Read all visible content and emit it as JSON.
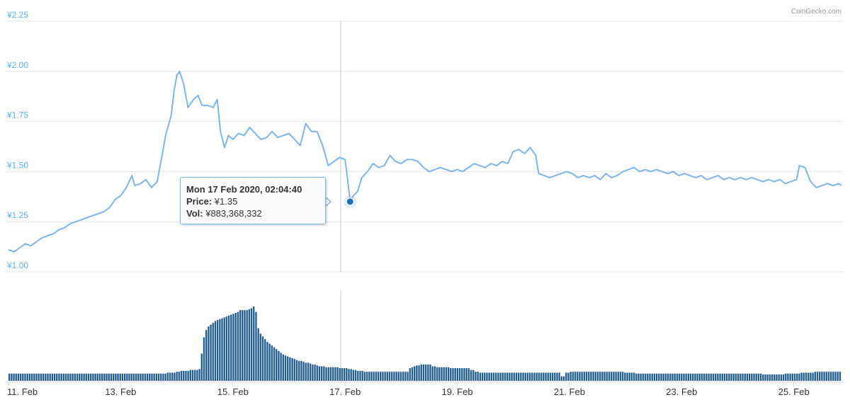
{
  "credit": "CoinGecko.com",
  "colors": {
    "price_line": "#7cb5ec",
    "volume_bar": "#1f5b8e",
    "y_axis_text": "#59b3e6",
    "marker": "#1f6fb2"
  },
  "tooltip": {
    "date": "Mon 17 Feb 2020, 02:04:40",
    "price_label": "Price:",
    "price_value": "¥1.35",
    "vol_label": "Vol:",
    "vol_value": "¥883,368,332"
  },
  "chart_data": [
    {
      "type": "line",
      "name": "price",
      "y_tick_labels": [
        "¥1.00",
        "¥1.25",
        "¥1.50",
        "¥1.75",
        "¥2.00",
        "¥2.25"
      ],
      "y_ticks": [
        1.0,
        1.25,
        1.5,
        1.75,
        2.0,
        2.25
      ],
      "ylim": [
        1.0,
        2.25
      ],
      "x_tick_labels": [
        "11. Feb",
        "13. Feb",
        "15. Feb",
        "17. Feb",
        "19. Feb",
        "21. Feb",
        "23. Feb",
        "25. Feb"
      ],
      "xlim": [
        11.0,
        25.85
      ],
      "grid": true,
      "highlight": {
        "x": 17.09,
        "y": 1.35
      },
      "points": [
        [
          11.0,
          1.11
        ],
        [
          11.1,
          1.1
        ],
        [
          11.2,
          1.12
        ],
        [
          11.3,
          1.14
        ],
        [
          11.4,
          1.13
        ],
        [
          11.5,
          1.15
        ],
        [
          11.6,
          1.17
        ],
        [
          11.7,
          1.18
        ],
        [
          11.8,
          1.19
        ],
        [
          11.9,
          1.21
        ],
        [
          12.0,
          1.22
        ],
        [
          12.1,
          1.24
        ],
        [
          12.2,
          1.25
        ],
        [
          12.3,
          1.26
        ],
        [
          12.4,
          1.27
        ],
        [
          12.5,
          1.28
        ],
        [
          12.6,
          1.29
        ],
        [
          12.7,
          1.3
        ],
        [
          12.8,
          1.32
        ],
        [
          12.9,
          1.36
        ],
        [
          13.0,
          1.38
        ],
        [
          13.1,
          1.42
        ],
        [
          13.2,
          1.48
        ],
        [
          13.25,
          1.43
        ],
        [
          13.35,
          1.44
        ],
        [
          13.45,
          1.46
        ],
        [
          13.55,
          1.42
        ],
        [
          13.65,
          1.45
        ],
        [
          13.75,
          1.6
        ],
        [
          13.8,
          1.68
        ],
        [
          13.9,
          1.78
        ],
        [
          13.95,
          1.9
        ],
        [
          14.0,
          1.98
        ],
        [
          14.05,
          2.0
        ],
        [
          14.12,
          1.94
        ],
        [
          14.2,
          1.82
        ],
        [
          14.3,
          1.86
        ],
        [
          14.38,
          1.88
        ],
        [
          14.45,
          1.83
        ],
        [
          14.55,
          1.83
        ],
        [
          14.65,
          1.82
        ],
        [
          14.72,
          1.86
        ],
        [
          14.78,
          1.7
        ],
        [
          14.85,
          1.62
        ],
        [
          14.92,
          1.68
        ],
        [
          15.0,
          1.66
        ],
        [
          15.1,
          1.69
        ],
        [
          15.2,
          1.68
        ],
        [
          15.3,
          1.72
        ],
        [
          15.4,
          1.69
        ],
        [
          15.5,
          1.66
        ],
        [
          15.6,
          1.67
        ],
        [
          15.7,
          1.7
        ],
        [
          15.8,
          1.67
        ],
        [
          15.9,
          1.68
        ],
        [
          16.0,
          1.69
        ],
        [
          16.1,
          1.66
        ],
        [
          16.2,
          1.63
        ],
        [
          16.3,
          1.74
        ],
        [
          16.4,
          1.7
        ],
        [
          16.5,
          1.7
        ],
        [
          16.6,
          1.63
        ],
        [
          16.7,
          1.53
        ],
        [
          16.8,
          1.55
        ],
        [
          16.9,
          1.57
        ],
        [
          17.0,
          1.56
        ],
        [
          17.05,
          1.45
        ],
        [
          17.09,
          1.35
        ],
        [
          17.15,
          1.38
        ],
        [
          17.22,
          1.4
        ],
        [
          17.3,
          1.47
        ],
        [
          17.4,
          1.5
        ],
        [
          17.5,
          1.54
        ],
        [
          17.6,
          1.52
        ],
        [
          17.7,
          1.53
        ],
        [
          17.8,
          1.58
        ],
        [
          17.9,
          1.55
        ],
        [
          18.0,
          1.54
        ],
        [
          18.1,
          1.56
        ],
        [
          18.2,
          1.56
        ],
        [
          18.3,
          1.55
        ],
        [
          18.4,
          1.52
        ],
        [
          18.5,
          1.5
        ],
        [
          18.6,
          1.51
        ],
        [
          18.7,
          1.52
        ],
        [
          18.8,
          1.51
        ],
        [
          18.9,
          1.5
        ],
        [
          19.0,
          1.51
        ],
        [
          19.1,
          1.5
        ],
        [
          19.2,
          1.52
        ],
        [
          19.3,
          1.54
        ],
        [
          19.4,
          1.53
        ],
        [
          19.5,
          1.52
        ],
        [
          19.6,
          1.54
        ],
        [
          19.7,
          1.53
        ],
        [
          19.8,
          1.55
        ],
        [
          19.9,
          1.54
        ],
        [
          20.0,
          1.6
        ],
        [
          20.1,
          1.61
        ],
        [
          20.2,
          1.59
        ],
        [
          20.3,
          1.62
        ],
        [
          20.4,
          1.58
        ],
        [
          20.45,
          1.49
        ],
        [
          20.55,
          1.48
        ],
        [
          20.65,
          1.47
        ],
        [
          20.75,
          1.48
        ],
        [
          20.85,
          1.49
        ],
        [
          20.95,
          1.5
        ],
        [
          21.05,
          1.49
        ],
        [
          21.15,
          1.47
        ],
        [
          21.25,
          1.48
        ],
        [
          21.35,
          1.47
        ],
        [
          21.45,
          1.48
        ],
        [
          21.55,
          1.46
        ],
        [
          21.65,
          1.49
        ],
        [
          21.75,
          1.47
        ],
        [
          21.85,
          1.48
        ],
        [
          21.95,
          1.5
        ],
        [
          22.05,
          1.51
        ],
        [
          22.15,
          1.52
        ],
        [
          22.25,
          1.5
        ],
        [
          22.35,
          1.51
        ],
        [
          22.45,
          1.5
        ],
        [
          22.55,
          1.51
        ],
        [
          22.65,
          1.5
        ],
        [
          22.75,
          1.49
        ],
        [
          22.85,
          1.5
        ],
        [
          22.95,
          1.48
        ],
        [
          23.05,
          1.49
        ],
        [
          23.15,
          1.48
        ],
        [
          23.25,
          1.47
        ],
        [
          23.35,
          1.48
        ],
        [
          23.45,
          1.46
        ],
        [
          23.55,
          1.47
        ],
        [
          23.65,
          1.48
        ],
        [
          23.75,
          1.46
        ],
        [
          23.85,
          1.47
        ],
        [
          23.95,
          1.46
        ],
        [
          24.05,
          1.47
        ],
        [
          24.15,
          1.46
        ],
        [
          24.25,
          1.47
        ],
        [
          24.35,
          1.46
        ],
        [
          24.45,
          1.45
        ],
        [
          24.55,
          1.46
        ],
        [
          24.65,
          1.45
        ],
        [
          24.75,
          1.46
        ],
        [
          24.85,
          1.44
        ],
        [
          24.95,
          1.45
        ],
        [
          25.05,
          1.46
        ],
        [
          25.1,
          1.53
        ],
        [
          25.2,
          1.52
        ],
        [
          25.3,
          1.45
        ],
        [
          25.4,
          1.42
        ],
        [
          25.5,
          1.43
        ],
        [
          25.6,
          1.44
        ],
        [
          25.7,
          1.43
        ],
        [
          25.8,
          1.44
        ],
        [
          25.85,
          1.43
        ]
      ]
    },
    {
      "type": "bar",
      "name": "volume",
      "xlim": [
        11.0,
        25.85
      ],
      "values_relative": [
        0.08,
        0.08,
        0.08,
        0.08,
        0.08,
        0.08,
        0.08,
        0.08,
        0.08,
        0.08,
        0.08,
        0.08,
        0.08,
        0.08,
        0.08,
        0.08,
        0.08,
        0.08,
        0.08,
        0.08,
        0.08,
        0.08,
        0.08,
        0.08,
        0.08,
        0.08,
        0.08,
        0.08,
        0.08,
        0.08,
        0.08,
        0.08,
        0.08,
        0.08,
        0.08,
        0.08,
        0.08,
        0.08,
        0.08,
        0.08,
        0.08,
        0.08,
        0.08,
        0.08,
        0.08,
        0.08,
        0.08,
        0.08,
        0.08,
        0.08,
        0.08,
        0.08,
        0.08,
        0.08,
        0.08,
        0.08,
        0.08,
        0.08,
        0.08,
        0.08,
        0.08,
        0.08,
        0.08,
        0.08,
        0.08,
        0.08,
        0.08,
        0.08,
        0.08,
        0.08,
        0.09,
        0.09,
        0.09,
        0.09,
        0.1,
        0.1,
        0.11,
        0.11,
        0.11,
        0.11,
        0.12,
        0.12,
        0.12,
        0.12,
        0.13,
        0.3,
        0.48,
        0.56,
        0.6,
        0.62,
        0.64,
        0.66,
        0.67,
        0.68,
        0.69,
        0.7,
        0.71,
        0.72,
        0.73,
        0.74,
        0.75,
        0.76,
        0.78,
        0.78,
        0.78,
        0.78,
        0.79,
        0.8,
        0.82,
        0.76,
        0.58,
        0.52,
        0.49,
        0.46,
        0.43,
        0.41,
        0.39,
        0.37,
        0.35,
        0.33,
        0.31,
        0.29,
        0.28,
        0.27,
        0.26,
        0.25,
        0.24,
        0.23,
        0.22,
        0.22,
        0.21,
        0.2,
        0.2,
        0.19,
        0.18,
        0.18,
        0.17,
        0.16,
        0.16,
        0.16,
        0.15,
        0.15,
        0.15,
        0.15,
        0.15,
        0.15,
        0.14,
        0.14,
        0.14,
        0.14,
        0.13,
        0.13,
        0.12,
        0.12,
        0.11,
        0.11,
        0.11,
        0.1,
        0.1,
        0.1,
        0.1,
        0.1,
        0.1,
        0.1,
        0.1,
        0.1,
        0.1,
        0.1,
        0.1,
        0.1,
        0.1,
        0.1,
        0.1,
        0.1,
        0.1,
        0.1,
        0.1,
        0.14,
        0.15,
        0.16,
        0.17,
        0.17,
        0.18,
        0.18,
        0.18,
        0.18,
        0.18,
        0.16,
        0.16,
        0.15,
        0.15,
        0.15,
        0.15,
        0.15,
        0.15,
        0.14,
        0.14,
        0.14,
        0.14,
        0.14,
        0.14,
        0.14,
        0.14,
        0.14,
        0.12,
        0.12,
        0.1,
        0.1,
        0.09,
        0.09,
        0.09,
        0.09,
        0.09,
        0.09,
        0.09,
        0.09,
        0.09,
        0.09,
        0.09,
        0.09,
        0.09,
        0.09,
        0.09,
        0.09,
        0.09,
        0.09,
        0.09,
        0.09,
        0.09,
        0.09,
        0.09,
        0.09,
        0.09,
        0.09,
        0.09,
        0.09,
        0.09,
        0.09,
        0.09,
        0.09,
        0.09,
        0.09,
        0.09,
        0.09,
        0.05,
        0.05,
        0.09,
        0.09,
        0.1,
        0.1,
        0.1,
        0.1,
        0.1,
        0.1,
        0.1,
        0.1,
        0.1,
        0.1,
        0.1,
        0.1,
        0.1,
        0.1,
        0.1,
        0.1,
        0.1,
        0.1,
        0.1,
        0.1,
        0.1,
        0.1,
        0.1,
        0.1,
        0.09,
        0.09,
        0.09,
        0.09,
        0.09,
        0.08,
        0.08,
        0.08,
        0.08,
        0.08,
        0.08,
        0.08,
        0.08,
        0.08,
        0.08,
        0.08,
        0.08,
        0.08,
        0.08,
        0.08,
        0.08,
        0.08,
        0.08,
        0.08,
        0.08,
        0.08,
        0.08,
        0.08,
        0.08,
        0.08,
        0.08,
        0.08,
        0.08,
        0.08,
        0.08,
        0.08,
        0.08,
        0.08,
        0.08,
        0.08,
        0.08,
        0.08,
        0.08,
        0.08,
        0.08,
        0.08,
        0.08,
        0.08,
        0.08,
        0.08,
        0.08,
        0.08,
        0.08,
        0.08,
        0.08,
        0.08,
        0.08,
        0.08,
        0.08,
        0.08,
        0.08,
        0.07,
        0.07,
        0.07,
        0.07,
        0.07,
        0.07,
        0.07,
        0.07,
        0.07,
        0.07,
        0.08,
        0.08,
        0.08,
        0.08,
        0.08,
        0.08,
        0.08,
        0.09,
        0.09,
        0.09,
        0.09,
        0.09,
        0.09,
        0.1,
        0.1,
        0.1,
        0.1,
        0.1,
        0.1,
        0.1,
        0.1,
        0.1,
        0.1,
        0.1,
        0.1
      ]
    }
  ]
}
